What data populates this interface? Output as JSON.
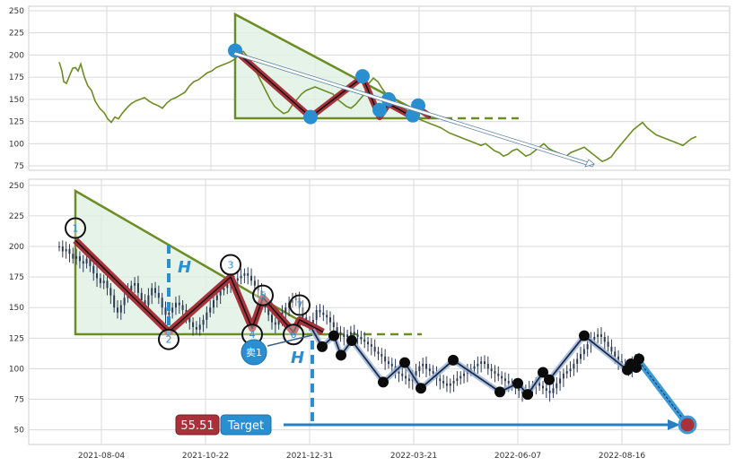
{
  "chart_data": [
    {
      "type": "line",
      "panel": "overview",
      "ylim": [
        70,
        255
      ],
      "y_ticks": [
        75,
        100,
        125,
        150,
        175,
        200,
        225,
        250
      ],
      "grid": true,
      "colors": {
        "price": "#6b8e23",
        "triangle": "#6b8e23",
        "triangle_fill": "#dff0e4",
        "pattern": "#a8323a",
        "pivot": "#2a8fd0",
        "arrow": "#5a7fa0"
      },
      "series": [
        {
          "x": [
            0,
            3,
            5,
            8,
            12,
            15,
            18,
            21,
            24,
            28,
            32,
            36,
            40,
            45,
            50,
            54,
            58,
            62,
            66,
            70,
            75,
            80,
            85,
            90,
            95,
            100,
            105,
            110,
            115,
            120,
            125,
            130,
            135,
            140,
            145,
            150,
            155,
            160,
            165,
            170,
            175,
            180,
            185,
            190,
            195,
            200,
            205,
            210,
            215,
            220,
            225,
            230,
            235,
            240,
            245,
            250,
            255,
            260,
            265,
            270,
            275,
            280,
            285,
            290,
            295,
            300,
            305,
            310,
            315,
            320,
            325,
            330,
            335,
            340,
            345,
            350,
            355,
            360,
            365,
            370,
            375,
            380,
            385,
            390,
            395,
            400,
            405,
            410,
            415,
            420,
            425,
            430,
            435,
            440,
            445,
            450,
            455,
            460,
            465,
            470,
            475,
            480,
            485,
            490,
            495,
            500,
            505,
            510,
            515,
            520,
            525,
            530,
            535,
            540,
            545,
            550,
            555,
            560,
            565,
            570,
            575,
            580,
            585,
            590,
            595,
            600,
            605,
            610,
            615,
            620,
            625,
            630,
            635,
            640,
            645,
            650,
            655,
            660,
            665,
            670,
            675,
            680,
            685,
            690,
            695,
            700,
            705,
            710
          ],
          "values": [
            192,
            182,
            170,
            168,
            178,
            185,
            186,
            182,
            190,
            175,
            165,
            160,
            148,
            140,
            135,
            128,
            124,
            130,
            128,
            134,
            140,
            145,
            148,
            150,
            152,
            148,
            145,
            143,
            140,
            146,
            150,
            152,
            155,
            158,
            165,
            170,
            172,
            176,
            180,
            182,
            186,
            188,
            190,
            192,
            195,
            200,
            204,
            198,
            188,
            180,
            170,
            160,
            150,
            142,
            138,
            134,
            136,
            144,
            150,
            156,
            160,
            162,
            164,
            162,
            160,
            158,
            156,
            150,
            146,
            142,
            140,
            144,
            150,
            156,
            168,
            174,
            170,
            162,
            155,
            150,
            146,
            142,
            140,
            135,
            132,
            128,
            126,
            124,
            122,
            120,
            118,
            115,
            112,
            110,
            108,
            106,
            104,
            102,
            100,
            98,
            100,
            96,
            92,
            90,
            86,
            88,
            92,
            94,
            90,
            86,
            88,
            92,
            96,
            100,
            95,
            92,
            90,
            88,
            86,
            90,
            92,
            94,
            96,
            92,
            88,
            84,
            80,
            82,
            85,
            92,
            98,
            104,
            110,
            116,
            120,
            124,
            118,
            114,
            110,
            108,
            106,
            104,
            102,
            100,
            98,
            102,
            106,
            108
          ]
        }
      ],
      "triangle": {
        "top": [
          0,
          248
        ],
        "bottom": [
          0,
          130
        ],
        "right": [
          0,
          130
        ]
      },
      "pattern_values": [
        205,
        130,
        175,
        130,
        145,
        130,
        140,
        130
      ],
      "pivot_values": [
        205,
        130,
        176,
        138,
        150,
        132,
        143
      ],
      "neckline_value": 132,
      "arrow": {
        "from_value": 204,
        "to_value": 78
      }
    },
    {
      "type": "candlestick",
      "panel": "detail",
      "ylim": [
        38,
        255
      ],
      "y_ticks": [
        50,
        75,
        100,
        125,
        150,
        175,
        200,
        225,
        250
      ],
      "x_tick_labels": [
        "2021-08-04",
        "2021-10-22",
        "2021-12-31",
        "2022-03-21",
        "2022-06-07",
        "2022-08-16"
      ],
      "grid": true,
      "colors": {
        "candles": "#2d3a55",
        "triangle": "#6b8e23",
        "triangle_fill": "#dff0e4",
        "pattern": "#a8323a",
        "zigzag": "#1b2a4a",
        "zigzag_glow": "#9ab3d6",
        "highlight": "#2a8fd0",
        "badge_price": "#a8323a",
        "badge_target": "#2a8fd0",
        "circle": "#111111"
      },
      "candle_closes": [
        200,
        196,
        198,
        194,
        190,
        192,
        188,
        186,
        190,
        184,
        178,
        174,
        170,
        172,
        166,
        160,
        150,
        146,
        152,
        158,
        164,
        168,
        170,
        162,
        156,
        152,
        160,
        166,
        162,
        158,
        150,
        144,
        146,
        150,
        154,
        152,
        148,
        142,
        138,
        134,
        132,
        136,
        140,
        146,
        150,
        156,
        160,
        164,
        166,
        170,
        168,
        172,
        174,
        176,
        178,
        176,
        172,
        168,
        164,
        158,
        150,
        144,
        138,
        136,
        140,
        146,
        150,
        154,
        156,
        158,
        150,
        142,
        138,
        136,
        140,
        148,
        146,
        144,
        142,
        138,
        134,
        130,
        128,
        126,
        128,
        130,
        128,
        126,
        124,
        122,
        120,
        118,
        114,
        112,
        110,
        106,
        104,
        102,
        98,
        96,
        94,
        92,
        90,
        94,
        98,
        102,
        104,
        100,
        98,
        96,
        92,
        90,
        88,
        86,
        88,
        90,
        92,
        94,
        96,
        98,
        100,
        102,
        104,
        106,
        104,
        100,
        98,
        96,
        94,
        92,
        90,
        88,
        86,
        84,
        82,
        80,
        82,
        84,
        86,
        88,
        86,
        84,
        82,
        80,
        84,
        88,
        92,
        96,
        98,
        100,
        104,
        108,
        112,
        116,
        120,
        124,
        126,
        128,
        126,
        122,
        118,
        114,
        110,
        106,
        104,
        102,
        100,
        104,
        108,
        106
      ],
      "pattern_values": [
        205,
        130,
        175,
        133,
        158,
        130,
        140,
        130
      ],
      "pattern_labels": [
        "1",
        "2",
        "3",
        "4",
        "5",
        "6",
        "7"
      ],
      "labelled_point_values": [
        215,
        124,
        185,
        128,
        160,
        128,
        152
      ],
      "zigzag_values": [
        132,
        118,
        127,
        111,
        123,
        89,
        105,
        84,
        107,
        81,
        88,
        79,
        97,
        91,
        127,
        99,
        104,
        101,
        108,
        55.51
      ],
      "neckline_value": 130,
      "annotations": {
        "h_mark": "H",
        "signal_text": "卖1",
        "price_badge": "55.51",
        "target_badge": "Target"
      },
      "target_value": 55.51
    }
  ]
}
